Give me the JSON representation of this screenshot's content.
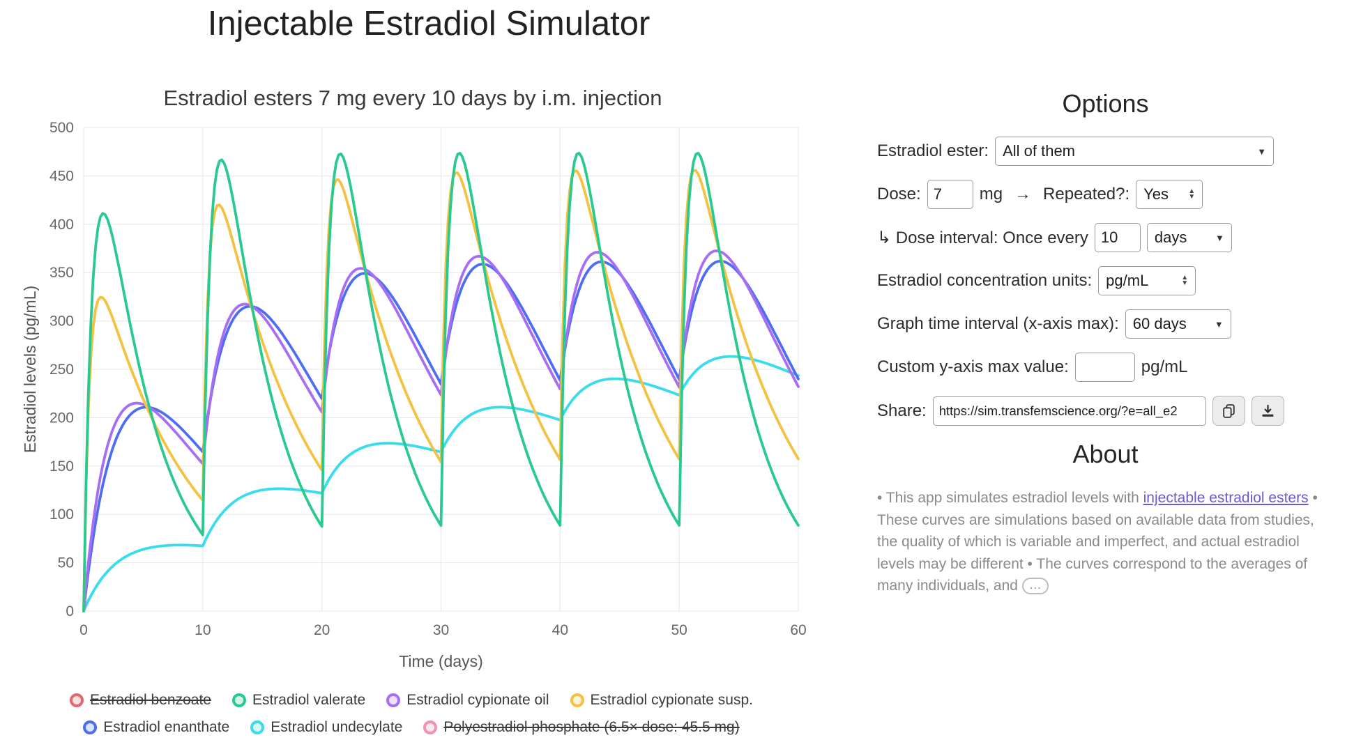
{
  "page": {
    "title": "Injectable Estradiol Simulator"
  },
  "chart_data": {
    "type": "line",
    "title": "Estradiol esters 7 mg every 10 days by i.m. injection",
    "xlabel": "Time (days)",
    "ylabel": "Estradiol levels (pg/mL)",
    "xlim": [
      0,
      60
    ],
    "ylim": [
      0,
      500
    ],
    "x_ticks": [
      0,
      10,
      20,
      30,
      40,
      50,
      60
    ],
    "y_ticks": [
      0,
      50,
      100,
      150,
      200,
      250,
      300,
      350,
      400,
      450,
      500
    ],
    "grid": true,
    "legend_position": "bottom",
    "dose_mg": 7,
    "dose_interval_days": 10,
    "dose_days": [
      0,
      10,
      20,
      30,
      40,
      50
    ],
    "series": [
      {
        "name": "Estradiol valerate",
        "color": "#29c98f",
        "model": {
          "A": 711,
          "ka": 1.3,
          "ke": 0.22
        },
        "daily_values": [
          0,
          377,
          405,
          353,
          291,
          236,
          190,
          152,
          122,
          98,
          79,
          440,
          456,
          394,
          324,
          262,
          211,
          169,
          136,
          109,
          88,
          447,
          461,
          398,
          327,
          265,
          213,
          171,
          137,
          110,
          89,
          448,
          462,
          399,
          328,
          266,
          213,
          171,
          138,
          110,
          89,
          449,
          462,
          399,
          328,
          266,
          213,
          171,
          138,
          110,
          89,
          449,
          462,
          399,
          328,
          266,
          213,
          171,
          138,
          110,
          89
        ]
      },
      {
        "name": "Estradiol cypionate oil",
        "color": "#a76df2",
        "model": {
          "A": 484,
          "ka": 0.4,
          "ke": 0.11
        },
        "daily_values": [
          0,
          109,
          171,
          202,
          214,
          214,
          206,
          195,
          181,
          167,
          152,
          248,
          296,
          315,
          316,
          305,
          289,
          269,
          247,
          226,
          206,
          295,
          339,
          354,
          350,
          336,
          316,
          294,
          270,
          246,
          224,
          311,
          354,
          367,
          362,
          347,
          326,
          302,
          277,
          253,
          230,
          317,
          358,
          371,
          366,
          350,
          329,
          305,
          280,
          255,
          232,
          319,
          360,
          372,
          367,
          351,
          330,
          306,
          280,
          256,
          232
        ]
      },
      {
        "name": "Estradiol cypionate susp.",
        "color": "#f3c242",
        "model": {
          "A": 420,
          "ka": 2.0,
          "ke": 0.13
        },
        "daily_values": [
          0,
          312,
          316,
          283,
          250,
          219,
          193,
          169,
          148,
          130,
          114,
          413,
          404,
          361,
          318,
          279,
          245,
          215,
          189,
          166,
          146,
          440,
          428,
          382,
          336,
          295,
          259,
          228,
          200,
          176,
          154,
          447,
          435,
          388,
          341,
          300,
          263,
          231,
          203,
          178,
          156,
          449,
          437,
          389,
          343,
          301,
          264,
          232,
          204,
          179,
          157,
          450,
          437,
          390,
          343,
          301,
          264,
          232,
          204,
          179,
          157
        ]
      },
      {
        "name": "Estradiol enanthate",
        "color": "#4d6ef3",
        "model": {
          "A": 890,
          "ka": 0.26,
          "ke": 0.135
        },
        "daily_values": [
          0,
          91,
          150,
          186,
          204,
          211,
          209,
          202,
          191,
          178,
          165,
          242,
          287,
          309,
          315,
          310,
          298,
          281,
          261,
          240,
          219,
          290,
          330,
          347,
          348,
          339,
          323,
          303,
          281,
          258,
          235,
          304,
          341,
          357,
          357,
          347,
          330,
          309,
          286,
          262,
          239,
          307,
          345,
          360,
          359,
          349,
          332,
          311,
          287,
          264,
          240,
          308,
          345,
          361,
          360,
          350,
          333,
          311,
          288,
          264,
          240
        ]
      },
      {
        "name": "Estradiol undecylate",
        "color": "#38dcec",
        "model": {
          "A": 90,
          "ka": 0.35,
          "ke": 0.025
        },
        "daily_values": [
          0,
          24,
          41,
          52,
          59,
          64,
          66,
          68,
          68,
          68,
          67,
          91,
          106,
          116,
          122,
          125,
          126,
          126,
          125,
          124,
          122,
          144,
          158,
          167,
          171,
          173,
          173,
          172,
          170,
          167,
          164,
          185,
          199,
          206,
          210,
          211,
          210,
          208,
          205,
          201,
          197,
          218,
          230,
          237,
          240,
          240,
          238,
          236,
          232,
          228,
          223,
          243,
          255,
          261,
          263,
          263,
          261,
          257,
          253,
          248,
          243
        ]
      }
    ],
    "draw_order": [
      4,
      3,
      1,
      2,
      0
    ],
    "legend": [
      {
        "label": "Estradiol benzoate",
        "color": "#e3686e",
        "disabled": true
      },
      {
        "label": "Estradiol valerate",
        "color": "#29c98f",
        "disabled": false
      },
      {
        "label": "Estradiol cypionate oil",
        "color": "#a76df2",
        "disabled": false
      },
      {
        "label": "Estradiol cypionate susp.",
        "color": "#f3c242",
        "disabled": false
      },
      {
        "label": "Estradiol enanthate",
        "color": "#4d6ef3",
        "disabled": false
      },
      {
        "label": "Estradiol undecylate",
        "color": "#38dcec",
        "disabled": false
      },
      {
        "label": "Polyestradiol phosphate (6.5× dose: 45.5 mg)",
        "color": "#f48fb6",
        "disabled": true
      }
    ],
    "legend_rows": [
      [
        0,
        1,
        2,
        3
      ],
      [
        4,
        5,
        6
      ]
    ]
  },
  "options": {
    "heading": "Options",
    "ester_label": "Estradiol ester:",
    "ester_value": "All of them",
    "dose_label": "Dose:",
    "dose_value": "7",
    "dose_unit": "mg",
    "arrow": "→",
    "repeated_label": "Repeated?:",
    "repeated_value": "Yes",
    "interval_label": "↳ Dose interval: Once every",
    "interval_value": "10",
    "interval_unit": "days",
    "units_label": "Estradiol concentration units:",
    "units_value": "pg/mL",
    "graph_interval_label": "Graph time interval (x-axis max):",
    "graph_interval_value": "60 days",
    "ymax_label": "Custom y-axis max value:",
    "ymax_value": "",
    "ymax_unit": "pg/mL",
    "share_label": "Share:",
    "share_value": "https://sim.transfemscience.org/?e=all_e2"
  },
  "about": {
    "heading": "About",
    "p1_before_link": "• This app simulates estradiol levels with ",
    "link_text": "injectable estradiol esters",
    "p1_after_link": " • These curves are simulations based on available data from studies, the quality of which is variable and imperfect, and actual estradiol levels may be different • The curves correspond to the averages of many individuals, and ",
    "expand_button": "…",
    "link_color": "#6a5acd"
  }
}
